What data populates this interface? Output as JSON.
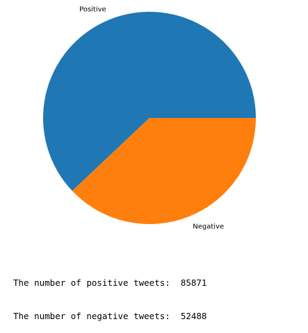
{
  "chart_data": {
    "type": "pie",
    "categories": [
      "Positive",
      "Negative"
    ],
    "values": [
      85871,
      52488
    ],
    "colors": [
      "#1f77b4",
      "#ff7f0e"
    ],
    "title": "",
    "xlabel": "",
    "ylabel": ""
  },
  "output": {
    "lines": [
      {
        "label": "The number of positive tweets:  ",
        "value": "85871"
      },
      {
        "label": "The number of negative tweets:  ",
        "value": "52488"
      }
    ]
  }
}
